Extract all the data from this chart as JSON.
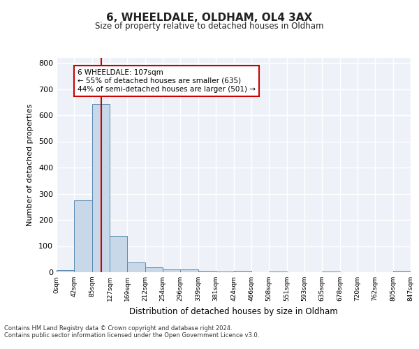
{
  "title1": "6, WHEELDALE, OLDHAM, OL4 3AX",
  "title2": "Size of property relative to detached houses in Oldham",
  "xlabel": "Distribution of detached houses by size in Oldham",
  "ylabel": "Number of detached properties",
  "bin_edges": [
    0,
    42,
    85,
    127,
    169,
    212,
    254,
    296,
    339,
    381,
    424,
    466,
    508,
    551,
    593,
    635,
    678,
    720,
    762,
    805,
    847
  ],
  "bar_heights": [
    7,
    275,
    643,
    140,
    38,
    20,
    12,
    10,
    5,
    4,
    5,
    0,
    4,
    0,
    0,
    4,
    0,
    0,
    0,
    5
  ],
  "bar_color": "#c8d8e8",
  "bar_edge_color": "#5a8ab0",
  "property_size": 107,
  "vline_color": "#cc0000",
  "annotation_line1": "6 WHEELDALE: 107sqm",
  "annotation_line2": "← 55% of detached houses are smaller (635)",
  "annotation_line3": "44% of semi-detached houses are larger (501) →",
  "annotation_box_color": "#ffffff",
  "annotation_box_edge": "#cc0000",
  "ylim": [
    0,
    820
  ],
  "background_color": "#eef2f8",
  "grid_color": "#ffffff",
  "footer_text": "Contains HM Land Registry data © Crown copyright and database right 2024.\nContains public sector information licensed under the Open Government Licence v3.0.",
  "tick_labels": [
    "0sqm",
    "42sqm",
    "85sqm",
    "127sqm",
    "169sqm",
    "212sqm",
    "254sqm",
    "296sqm",
    "339sqm",
    "381sqm",
    "424sqm",
    "466sqm",
    "508sqm",
    "551sqm",
    "593sqm",
    "635sqm",
    "678sqm",
    "720sqm",
    "762sqm",
    "805sqm",
    "847sqm"
  ],
  "yticks": [
    0,
    100,
    200,
    300,
    400,
    500,
    600,
    700,
    800
  ]
}
